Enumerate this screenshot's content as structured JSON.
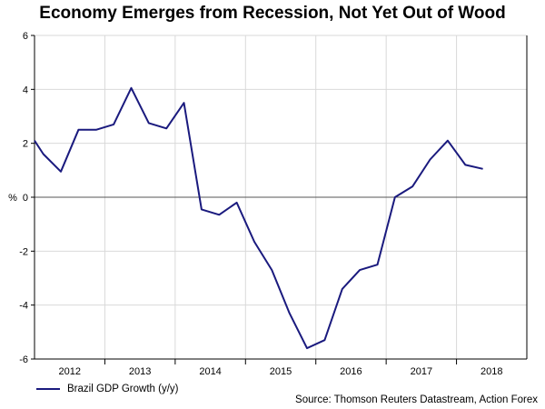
{
  "chart_data": {
    "type": "line",
    "title": "Economy Emerges from Recession, Not Yet Out of Wood",
    "ylabel": "%",
    "xlabel": "",
    "ylim": [
      -6,
      6
    ],
    "yticks": [
      6,
      4,
      2,
      0,
      -2,
      -4,
      -6
    ],
    "xlim": [
      2011.5,
      2018.5
    ],
    "xticks": [
      {
        "label": "2012",
        "x": 2012
      },
      {
        "label": "2013",
        "x": 2013
      },
      {
        "label": "2014",
        "x": 2014
      },
      {
        "label": "2015",
        "x": 2015
      },
      {
        "label": "2016",
        "x": 2016
      },
      {
        "label": "2017",
        "x": 2017
      },
      {
        "label": "2018",
        "x": 2018
      }
    ],
    "series": [
      {
        "name": "Brazil GDP Growth (y/y)",
        "color": "#1a1a7e",
        "points": [
          [
            2011.5,
            2.1
          ],
          [
            2011.625,
            1.6
          ],
          [
            2011.875,
            0.95
          ],
          [
            2012.125,
            2.5
          ],
          [
            2012.375,
            2.5
          ],
          [
            2012.625,
            2.7
          ],
          [
            2012.875,
            4.05
          ],
          [
            2013.125,
            2.75
          ],
          [
            2013.375,
            2.55
          ],
          [
            2013.625,
            3.5
          ],
          [
            2013.875,
            -0.45
          ],
          [
            2014.125,
            -0.65
          ],
          [
            2014.375,
            -0.2
          ],
          [
            2014.625,
            -1.65
          ],
          [
            2014.875,
            -2.7
          ],
          [
            2015.125,
            -4.3
          ],
          [
            2015.375,
            -5.6
          ],
          [
            2015.625,
            -5.3
          ],
          [
            2015.875,
            -3.4
          ],
          [
            2016.125,
            -2.7
          ],
          [
            2016.375,
            -2.5
          ],
          [
            2016.625,
            0.0
          ],
          [
            2016.875,
            0.4
          ],
          [
            2017.125,
            1.4
          ],
          [
            2017.375,
            2.1
          ],
          [
            2017.625,
            1.2
          ],
          [
            2017.875,
            1.05
          ]
        ]
      }
    ],
    "gridlines": true,
    "zero_line": true,
    "legend_position": "bottom-left"
  },
  "source": "Source: Thomson Reuters Datastream, Action Forex"
}
